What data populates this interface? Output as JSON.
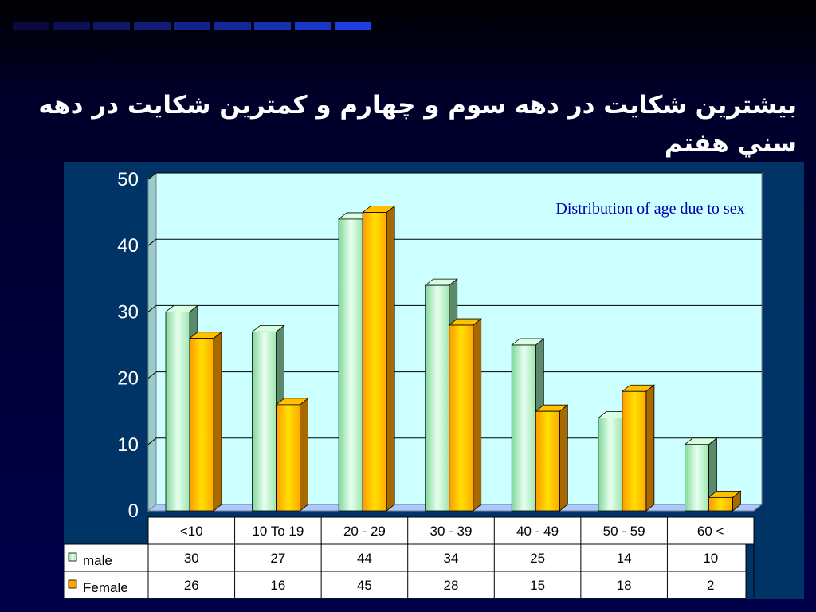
{
  "slide": {
    "title": "بيشترين شكايت در دهه سوم و چهارم و كمترين شكايت در دهه سني هفتم",
    "deco_colors": [
      "#0a0a40",
      "#0c0f55",
      "#0f1766",
      "#111c77",
      "#132288",
      "#152899",
      "#1730b0",
      "#1a38c8",
      "#1c40e0"
    ]
  },
  "chart_data": {
    "type": "bar",
    "title": "Distribution of age due to  sex",
    "categories": [
      "<10",
      "10  To 19",
      "20 - 29",
      "30 - 39",
      "40 - 49",
      "50 - 59",
      "60 <"
    ],
    "series": [
      {
        "name": "male",
        "values": [
          30,
          27,
          44,
          34,
          25,
          14,
          10
        ],
        "color": "#b8f0c0"
      },
      {
        "name": "Female",
        "values": [
          26,
          16,
          45,
          28,
          15,
          18,
          2
        ],
        "color": "#ffa500"
      }
    ],
    "ylim": [
      0,
      50
    ],
    "yticks": [
      0,
      10,
      20,
      30,
      40,
      50
    ],
    "grid": true,
    "plot_background": "#ccffff",
    "data_table": true
  }
}
